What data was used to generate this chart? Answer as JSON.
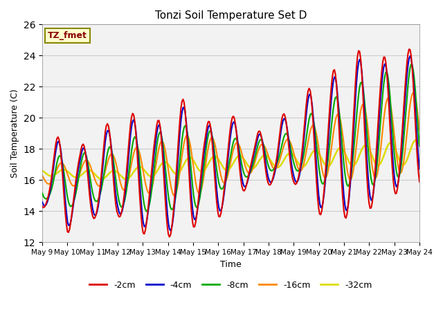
{
  "title": "Tonzi Soil Temperature Set D",
  "xlabel": "Time",
  "ylabel": "Soil Temperature (C)",
  "ylim": [
    12,
    26
  ],
  "background_color": "#ffffff",
  "plot_bg_color": "#f0f0f0",
  "annotation_text": "TZ_fmet",
  "annotation_color": "#880000",
  "annotation_bg": "#ffffcc",
  "annotation_border": "#888800",
  "xtick_labels": [
    "May 9",
    "May 10",
    "May 11",
    "May 12",
    "May 13",
    "May 14",
    "May 15",
    "May 16",
    "May 17",
    "May 18",
    "May 19",
    "May 20",
    "May 21",
    "May 22",
    "May 23",
    "May 24"
  ],
  "series": {
    "-2cm": {
      "color": "#dd0000",
      "lw": 1.5
    },
    "-4cm": {
      "color": "#0000cc",
      "lw": 1.5
    },
    "-8cm": {
      "color": "#00aa00",
      "lw": 1.5
    },
    "-16cm": {
      "color": "#ff8800",
      "lw": 1.5
    },
    "-32cm": {
      "color": "#dddd00",
      "lw": 1.8
    }
  },
  "yticks": [
    12,
    14,
    16,
    18,
    20,
    22,
    24,
    26
  ],
  "grid_color": "#cccccc"
}
